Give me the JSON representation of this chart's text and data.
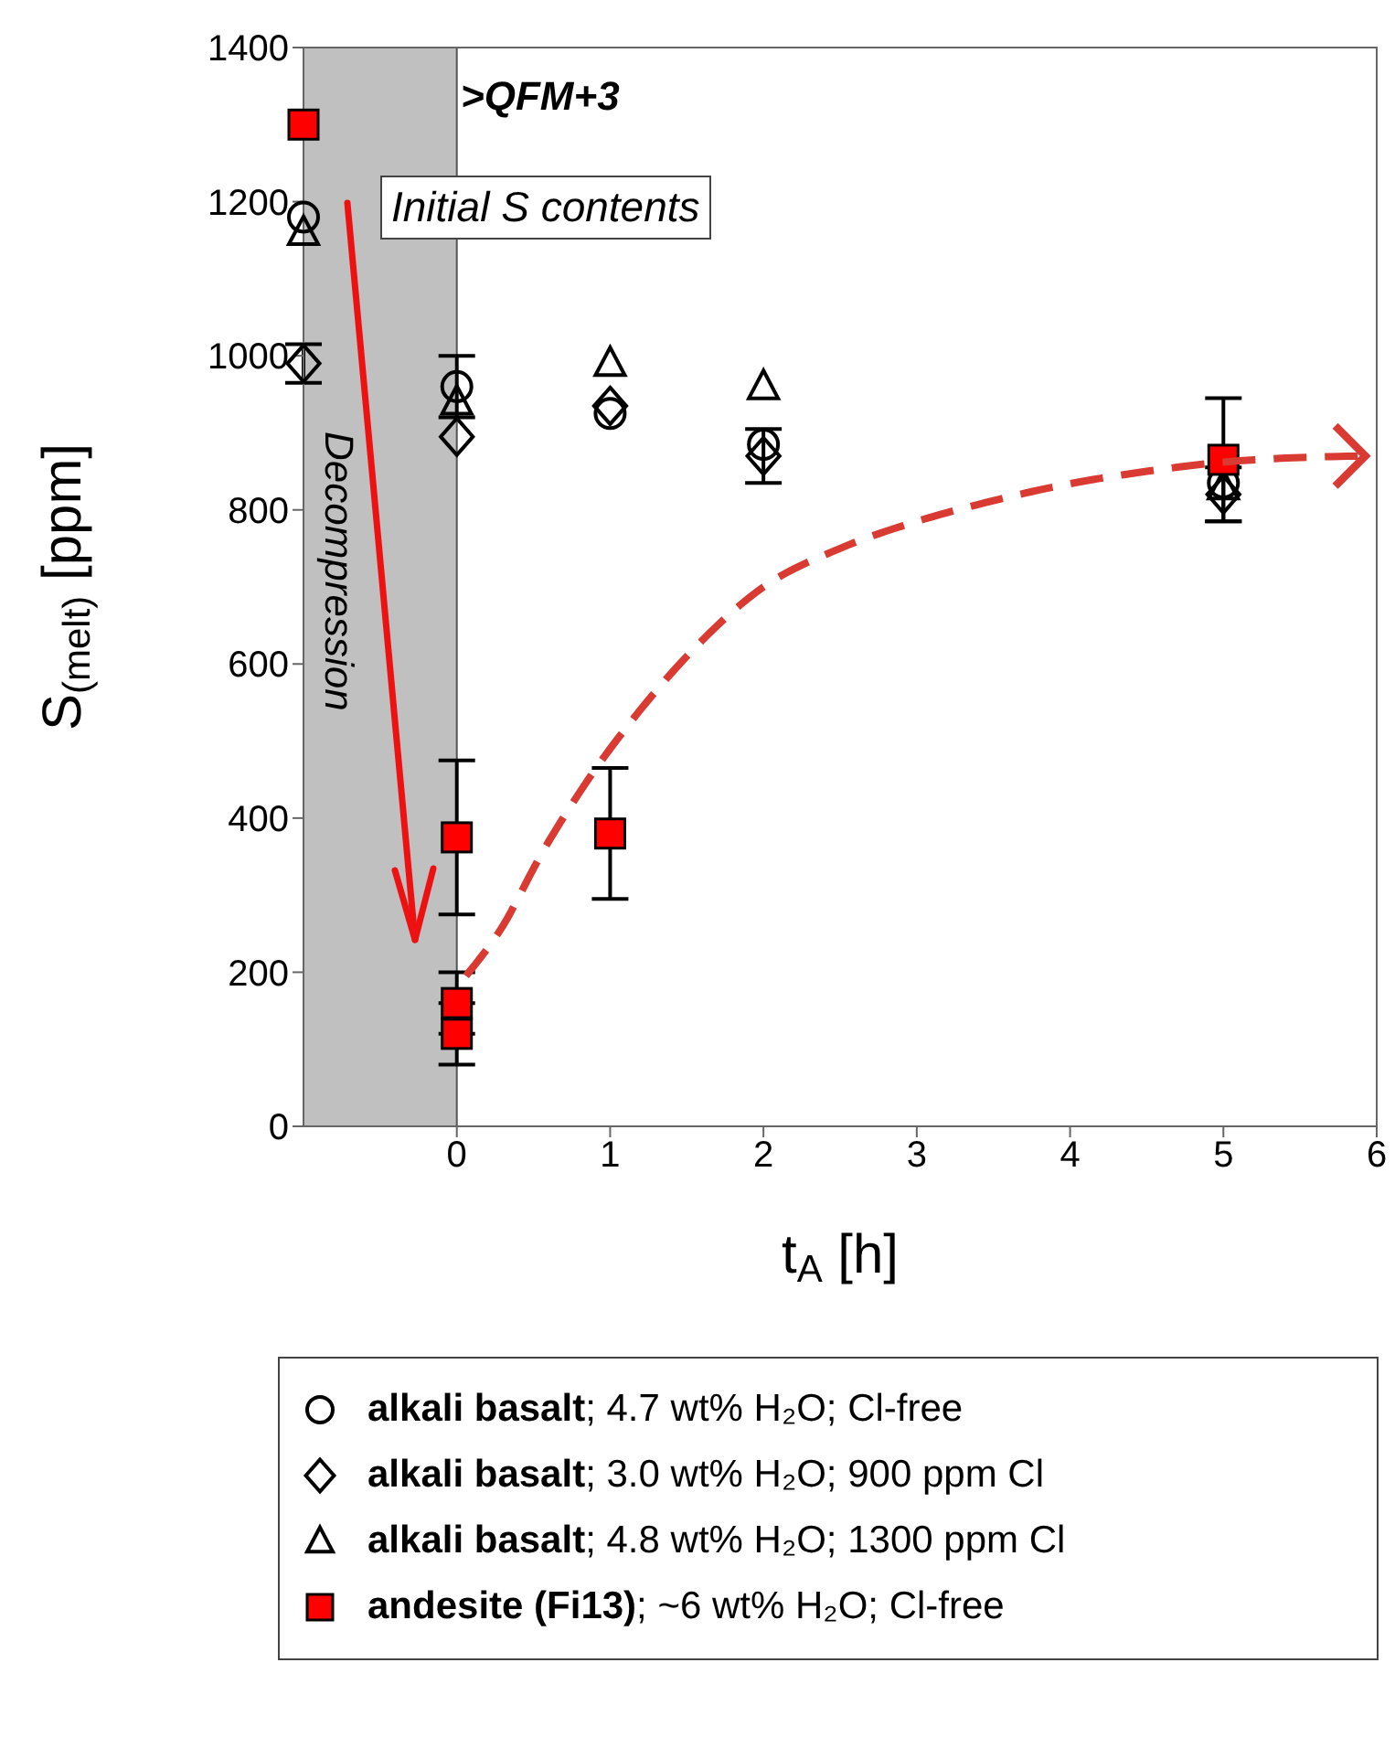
{
  "chart_data": {
    "type": "scatter",
    "xlabel": "t$_{A}$ [h]",
    "ylabel": "S$_{(melt)}$ [ppm]",
    "xlim": [
      -1,
      6
    ],
    "xticks": [
      0,
      1,
      2,
      3,
      4,
      5,
      6
    ],
    "ylim": [
      0,
      1400
    ],
    "yticks": [
      0,
      200,
      400,
      600,
      800,
      1000,
      1200,
      1400
    ],
    "legend": "bottom",
    "annotations": [
      ">QFM+3",
      "Initial S contents",
      "Decompression"
    ],
    "bands": [
      {
        "axis": "x",
        "from": -1,
        "to": 0,
        "color": "#c0c0c0"
      }
    ],
    "series": [
      {
        "name": "alkali basalt; 4.7 wt% H₂O; Cl-free",
        "color": "#000000",
        "marker": "circle",
        "x": [
          -1,
          0,
          1,
          2,
          5
        ],
        "values": [
          1180,
          960,
          925,
          885,
          835
        ],
        "errors": [
          null,
          40,
          null,
          null,
          null
        ]
      },
      {
        "name": "alkali basalt; 3.0 wt% H₂O; 900 ppm Cl",
        "color": "#000000",
        "marker": "diamond",
        "x": [
          -1,
          0,
          1,
          2,
          5
        ],
        "values": [
          990,
          895,
          935,
          870,
          820
        ],
        "errors": [
          25,
          null,
          null,
          35,
          35
        ]
      },
      {
        "name": "alkali basalt; 4.8 wt% H₂O; 1300 ppm Cl",
        "color": "#000000",
        "marker": "triangle",
        "x": [
          -1,
          0,
          1,
          2,
          5
        ],
        "values": [
          1160,
          940,
          990,
          960,
          830
        ]
      },
      {
        "name": "andesite (Fi13); ~6 wt% H₂O; Cl-free",
        "color": "#ff0000",
        "marker": "square",
        "x": [
          -1,
          0,
          0,
          0,
          1,
          5
        ],
        "values": [
          1300,
          375,
          120,
          160,
          380,
          865
        ],
        "errors": [
          null,
          100,
          40,
          40,
          85,
          80
        ]
      }
    ]
  }
}
